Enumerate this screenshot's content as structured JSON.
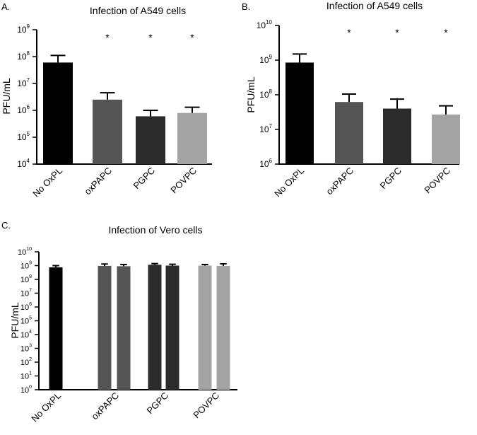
{
  "chart_data": [
    {
      "panel_label": "A.",
      "type": "bar",
      "scale": "log10",
      "title": "Infection of  A549 cells",
      "ylabel": "PFU/mL",
      "xlabel": "",
      "ylim": [
        10000,
        1000000000
      ],
      "y_tick_base": "10",
      "y_tick_exponents": [
        "4",
        "5",
        "6",
        "7",
        "8",
        "9"
      ],
      "categories": [
        "No OxPL",
        "oxPAPC",
        "PGPC",
        "POVPC"
      ],
      "bars": [
        {
          "group": 0,
          "value": 60000000,
          "error_upper": 110000000,
          "color": "#000000"
        },
        {
          "group": 1,
          "value": 2500000,
          "error_upper": 4500000,
          "color": "#555555"
        },
        {
          "group": 2,
          "value": 600000,
          "error_upper": 1000000,
          "color": "#2b2b2b"
        },
        {
          "group": 3,
          "value": 800000,
          "error_upper": 1300000,
          "color": "#a3a3a3"
        }
      ],
      "significance": [
        "",
        "*",
        "*",
        "*"
      ]
    },
    {
      "panel_label": "B.",
      "type": "bar",
      "scale": "log10",
      "title": "Infection of A549 cells",
      "ylabel": "PFU/mL",
      "xlabel": "",
      "ylim": [
        1000000,
        10000000000
      ],
      "y_tick_base": "10",
      "y_tick_exponents": [
        "6",
        "7",
        "8",
        "9",
        "10"
      ],
      "categories": [
        "No OxPL",
        "oxPAPC",
        "PGPC",
        "POVPC"
      ],
      "bars": [
        {
          "group": 0,
          "value": 850000000,
          "error_upper": 1500000000,
          "color": "#000000"
        },
        {
          "group": 1,
          "value": 62000000,
          "error_upper": 105000000,
          "color": "#555555"
        },
        {
          "group": 2,
          "value": 40000000,
          "error_upper": 75000000,
          "color": "#2b2b2b"
        },
        {
          "group": 3,
          "value": 27000000,
          "error_upper": 48000000,
          "color": "#a3a3a3"
        }
      ],
      "significance": [
        "",
        "*",
        "*",
        "*"
      ]
    },
    {
      "panel_label": "C.",
      "type": "bar",
      "scale": "log10",
      "title": "Infection of Vero cells",
      "ylabel": "PFU/mL",
      "xlabel": "",
      "ylim": [
        1,
        10000000000
      ],
      "y_tick_base": "10",
      "y_tick_exponents": [
        "0",
        "1",
        "2",
        "3",
        "4",
        "5",
        "6",
        "7",
        "8",
        "9",
        "10"
      ],
      "categories": [
        "No OxPL",
        "oxPAPC",
        "PGPC",
        "POVPC"
      ],
      "bars": [
        {
          "group": 0,
          "value": 750000000,
          "error_upper": 1000000000,
          "color": "#000000"
        },
        {
          "group": 1,
          "value": 950000000,
          "error_upper": 1300000000,
          "color": "#555555"
        },
        {
          "group": 1,
          "value": 900000000,
          "error_upper": 1200000000,
          "color": "#555555"
        },
        {
          "group": 2,
          "value": 1150000000,
          "error_upper": 1400000000,
          "color": "#2b2b2b"
        },
        {
          "group": 2,
          "value": 1000000000,
          "error_upper": 1250000000,
          "color": "#2b2b2b"
        },
        {
          "group": 3,
          "value": 1000000000,
          "error_upper": 1200000000,
          "color": "#a3a3a3"
        },
        {
          "group": 3,
          "value": 950000000,
          "error_upper": 1350000000,
          "color": "#a3a3a3"
        }
      ],
      "significance": [
        "",
        "",
        "",
        ""
      ]
    }
  ]
}
